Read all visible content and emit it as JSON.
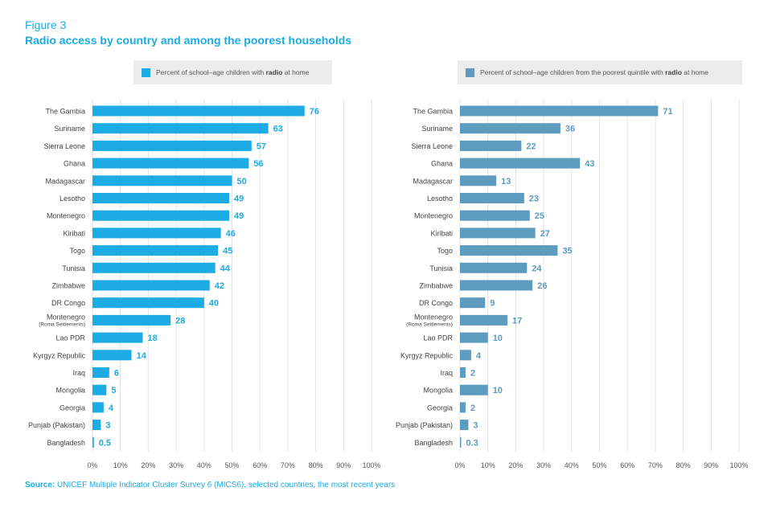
{
  "figure_label": "Figure 3",
  "title": "Radio access by country and among the poorest households",
  "legend": [
    {
      "before": "Percent of school–age children with ",
      "bold": "radio",
      "after": " at home",
      "color": "#1cabe2"
    },
    {
      "before": "Percent of school–age children from the poorest quintile with ",
      "bold": "radio",
      "after": " at home",
      "color": "#5d9bbf"
    }
  ],
  "source": {
    "label": "Source:",
    "text": " UNICEF Multiple Indicator Cluster Survey 6 (MICS6), selected countries, the most recent years"
  },
  "colors": {
    "left_bar": "#1cabe2",
    "right_bar": "#5d9bbf",
    "grid": "#e3e3e3"
  },
  "chart_data": [
    {
      "type": "bar",
      "orientation": "horizontal",
      "categories": [
        "The Gambia",
        "Suriname",
        "Sierra Leone",
        "Ghana",
        "Madagascar",
        "Lesotho",
        "Montenegro",
        "Kiribati",
        "Togo",
        "Tunisia",
        "Zimbabwe",
        "DR Congo",
        "Montenegro (Roma Settlements)",
        "Lao PDR",
        "Kyrgyz Republic",
        "Iraq",
        "Mongolia",
        "Georgia",
        "Punjab (Pakistan)",
        "Bangladesh"
      ],
      "category_lines": [
        [
          "The Gambia"
        ],
        [
          "Suriname"
        ],
        [
          "Sierra Leone"
        ],
        [
          "Ghana"
        ],
        [
          "Madagascar"
        ],
        [
          "Lesotho"
        ],
        [
          "Montenegro"
        ],
        [
          "Kiribati"
        ],
        [
          "Togo"
        ],
        [
          "Tunisia"
        ],
        [
          "Zimbabwe"
        ],
        [
          "DR Congo"
        ],
        [
          "Montenegro",
          "(Roma Settlements)"
        ],
        [
          "Lao PDR"
        ],
        [
          "Kyrgyz Republic"
        ],
        [
          "Iraq"
        ],
        [
          "Mongolia"
        ],
        [
          "Georgia"
        ],
        [
          "Punjab (Pakistan)"
        ],
        [
          "Bangladesh"
        ]
      ],
      "values": [
        76,
        63,
        57,
        56,
        50,
        49,
        49,
        46,
        45,
        44,
        42,
        40,
        28,
        18,
        14,
        6,
        5,
        4,
        3,
        0.5
      ],
      "xlim": [
        0,
        100
      ],
      "xticks": [
        "0%",
        "10%",
        "20%",
        "30%",
        "40%",
        "50%",
        "60%",
        "70%",
        "80%",
        "90%",
        "100%"
      ],
      "grid": true
    },
    {
      "type": "bar",
      "orientation": "horizontal",
      "categories": [
        "The Gambia",
        "Suriname",
        "Sierra Leone",
        "Ghana",
        "Madagascar",
        "Lesotho",
        "Montenegro",
        "Kiribati",
        "Togo",
        "Tunisia",
        "Zimbabwe",
        "DR Congo",
        "Montenegro (Roma Settlements)",
        "Lao PDR",
        "Kyrgyz Republic",
        "Iraq",
        "Mongolia",
        "Georgia",
        "Punjab (Pakistan)",
        "Bangladesh"
      ],
      "category_lines": [
        [
          "The Gambia"
        ],
        [
          "Suriname"
        ],
        [
          "Sierra Leone"
        ],
        [
          "Ghana"
        ],
        [
          "Madagascar"
        ],
        [
          "Lesotho"
        ],
        [
          "Montenegro"
        ],
        [
          "Kiribati"
        ],
        [
          "Togo"
        ],
        [
          "Tunisia"
        ],
        [
          "Zimbabwe"
        ],
        [
          "DR Congo"
        ],
        [
          "Montenegro",
          "(Roma Settlements)"
        ],
        [
          "Lao PDR"
        ],
        [
          "Kyrgyz Republic"
        ],
        [
          "Iraq"
        ],
        [
          "Mongolia"
        ],
        [
          "Georgia"
        ],
        [
          "Punjab (Pakistan)"
        ],
        [
          "Bangladesh"
        ]
      ],
      "values": [
        71,
        36,
        22,
        43,
        13,
        23,
        25,
        27,
        35,
        24,
        26,
        9,
        17,
        10,
        4,
        2,
        10,
        2,
        3,
        0.3
      ],
      "xlim": [
        0,
        100
      ],
      "xticks": [
        "0%",
        "10%",
        "20%",
        "30%",
        "40%",
        "50%",
        "60%",
        "70%",
        "80%",
        "90%",
        "100%"
      ],
      "grid": true
    }
  ]
}
